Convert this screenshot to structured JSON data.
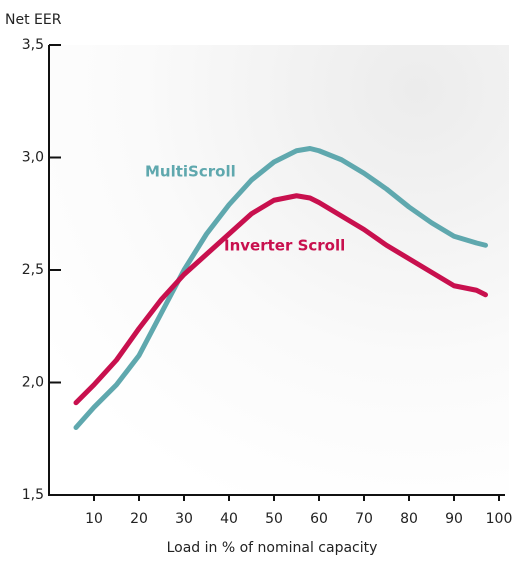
{
  "chart_data": {
    "type": "line",
    "y_label": "Net EER",
    "x_label": "Load in % of nominal capacity",
    "x": [
      6,
      10,
      15,
      20,
      25,
      30,
      35,
      40,
      45,
      50,
      55,
      58,
      60,
      65,
      70,
      75,
      80,
      85,
      90,
      95,
      97
    ],
    "series": [
      {
        "name": "MultiScroll",
        "color": "#5fa8ae",
        "values": [
          1.8,
          1.89,
          1.99,
          2.12,
          2.31,
          2.5,
          2.66,
          2.79,
          2.9,
          2.98,
          3.03,
          3.04,
          3.03,
          2.99,
          2.93,
          2.86,
          2.78,
          2.71,
          2.65,
          2.62,
          2.61
        ]
      },
      {
        "name": "Inverter Scroll",
        "color": "#c8104e",
        "values": [
          1.91,
          1.99,
          2.1,
          2.24,
          2.37,
          2.48,
          2.57,
          2.66,
          2.75,
          2.81,
          2.83,
          2.82,
          2.8,
          2.74,
          2.68,
          2.61,
          2.55,
          2.49,
          2.43,
          2.41,
          2.39
        ]
      }
    ],
    "xlim": [
      0,
      100
    ],
    "xticks": [
      10,
      20,
      30,
      40,
      50,
      60,
      70,
      80,
      90,
      100
    ],
    "ylim": [
      1.5,
      3.5
    ],
    "yticks": [
      {
        "value": 1.5,
        "label": "1,5"
      },
      {
        "value": 2.0,
        "label": "2,0"
      },
      {
        "value": 2.5,
        "label": "2,5"
      },
      {
        "value": 3.0,
        "label": "3,0"
      },
      {
        "value": 3.5,
        "label": "3,5"
      }
    ]
  }
}
